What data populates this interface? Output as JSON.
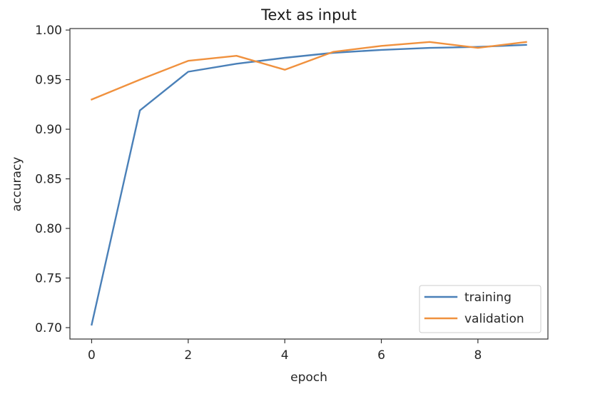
{
  "chart_data": {
    "type": "line",
    "title": "Text as input",
    "xlabel": "epoch",
    "ylabel": "accuracy",
    "xlim": [
      -0.45,
      9.45
    ],
    "ylim": [
      0.6885,
      1.0015
    ],
    "x_ticks": [
      0,
      2,
      4,
      6,
      8
    ],
    "x_tick_labels": [
      "0",
      "2",
      "4",
      "6",
      "8"
    ],
    "y_ticks": [
      0.7,
      0.75,
      0.8,
      0.85,
      0.9,
      0.95,
      1.0
    ],
    "y_tick_labels": [
      "0.70",
      "0.75",
      "0.80",
      "0.85",
      "0.90",
      "0.95",
      "1.00"
    ],
    "grid": false,
    "legend_position": "lower-right",
    "x": [
      0,
      1,
      2,
      3,
      4,
      5,
      6,
      7,
      8,
      9
    ],
    "series": [
      {
        "name": "training",
        "color": "#4a80b8",
        "values": [
          0.703,
          0.919,
          0.958,
          0.966,
          0.972,
          0.977,
          0.98,
          0.982,
          0.983,
          0.985
        ]
      },
      {
        "name": "validation",
        "color": "#f0913e",
        "values": [
          0.93,
          0.95,
          0.969,
          0.974,
          0.96,
          0.978,
          0.984,
          0.988,
          0.982,
          0.988
        ]
      }
    ]
  }
}
